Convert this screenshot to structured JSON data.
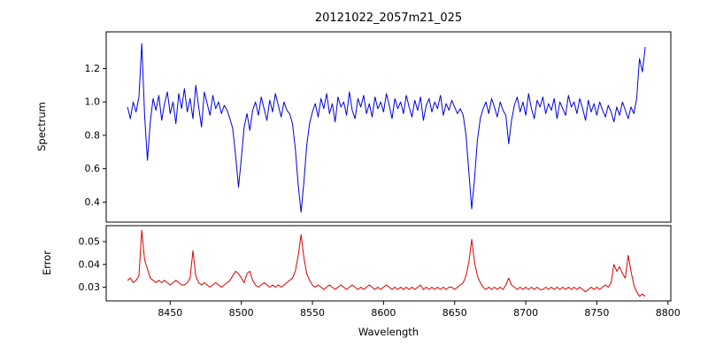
{
  "chart_data": {
    "type": "line",
    "title": "20121022_2057m21_025",
    "xlabel": "Wavelength",
    "grid": false,
    "legend": "none",
    "xlim": [
      8405,
      8802
    ],
    "xticks": [
      8450,
      8500,
      8550,
      8600,
      8650,
      8700,
      8750,
      8800
    ],
    "xtick_labels": [
      "8450",
      "8500",
      "8550",
      "8600",
      "8650",
      "8700",
      "8750",
      "8800"
    ],
    "x": [
      8420,
      8422,
      8424,
      8426,
      8428,
      8430,
      8432,
      8434,
      8436,
      8438,
      8440,
      8442,
      8444,
      8446,
      8448,
      8450,
      8452,
      8454,
      8456,
      8458,
      8460,
      8462,
      8464,
      8466,
      8468,
      8470,
      8472,
      8474,
      8476,
      8478,
      8480,
      8482,
      8484,
      8486,
      8488,
      8490,
      8492,
      8494,
      8496,
      8498,
      8500,
      8502,
      8504,
      8506,
      8508,
      8510,
      8512,
      8514,
      8516,
      8518,
      8520,
      8522,
      8524,
      8526,
      8528,
      8530,
      8532,
      8534,
      8536,
      8538,
      8540,
      8542,
      8544,
      8546,
      8548,
      8550,
      8552,
      8554,
      8556,
      8558,
      8560,
      8562,
      8564,
      8566,
      8568,
      8570,
      8572,
      8574,
      8576,
      8578,
      8580,
      8582,
      8584,
      8586,
      8588,
      8590,
      8592,
      8594,
      8596,
      8598,
      8600,
      8602,
      8604,
      8606,
      8608,
      8610,
      8612,
      8614,
      8616,
      8618,
      8620,
      8622,
      8624,
      8626,
      8628,
      8630,
      8632,
      8634,
      8636,
      8638,
      8640,
      8642,
      8644,
      8646,
      8648,
      8650,
      8652,
      8654,
      8656,
      8658,
      8660,
      8662,
      8664,
      8666,
      8668,
      8670,
      8672,
      8674,
      8676,
      8678,
      8680,
      8682,
      8684,
      8686,
      8688,
      8690,
      8692,
      8694,
      8696,
      8698,
      8700,
      8702,
      8704,
      8706,
      8708,
      8710,
      8712,
      8714,
      8716,
      8718,
      8720,
      8722,
      8724,
      8726,
      8728,
      8730,
      8732,
      8734,
      8736,
      8738,
      8740,
      8742,
      8744,
      8746,
      8748,
      8750,
      8752,
      8754,
      8756,
      8758,
      8760,
      8762,
      8764,
      8766,
      8768,
      8770,
      8772,
      8774,
      8776,
      8778,
      8780,
      8782,
      8784
    ],
    "panels": [
      {
        "name": "spectrum",
        "ylabel": "Spectrum",
        "color": "#0000dd",
        "ylim": [
          0.28,
          1.42
        ],
        "yticks": [
          0.4,
          0.6,
          0.8,
          1.0,
          1.2
        ],
        "ytick_labels": [
          "0.4",
          "0.6",
          "0.8",
          "1.0",
          "1.2"
        ],
        "y": [
          0.97,
          0.9,
          1.0,
          0.94,
          1.03,
          1.35,
          0.92,
          0.65,
          0.88,
          1.02,
          0.95,
          1.04,
          0.89,
          0.99,
          1.06,
          0.93,
          1.0,
          0.87,
          1.05,
          0.96,
          1.08,
          0.94,
          1.02,
          0.9,
          1.1,
          0.97,
          0.85,
          1.06,
          0.99,
          0.92,
          1.04,
          0.96,
          1.0,
          0.93,
          0.98,
          0.95,
          0.9,
          0.84,
          0.68,
          0.49,
          0.66,
          0.85,
          0.93,
          0.83,
          0.95,
          1.0,
          0.92,
          1.03,
          0.96,
          0.89,
          1.01,
          0.94,
          1.05,
          0.98,
          0.91,
          1.0,
          0.95,
          0.93,
          0.87,
          0.72,
          0.5,
          0.34,
          0.52,
          0.74,
          0.87,
          0.94,
          0.99,
          0.91,
          1.02,
          0.96,
          1.05,
          0.93,
          0.99,
          0.88,
          1.03,
          0.97,
          1.0,
          0.92,
          1.06,
          0.95,
          0.9,
          1.02,
          0.97,
          1.04,
          0.93,
          0.99,
          0.91,
          1.03,
          0.96,
          1.0,
          0.94,
          1.05,
          0.98,
          0.9,
          1.02,
          0.96,
          1.0,
          0.93,
          1.04,
          0.97,
          0.91,
          1.01,
          0.95,
          1.03,
          0.89,
          0.98,
          1.02,
          0.94,
          1.0,
          0.96,
          1.04,
          0.92,
          0.99,
          0.95,
          1.01,
          0.97,
          0.93,
          0.96,
          0.92,
          0.8,
          0.58,
          0.36,
          0.54,
          0.77,
          0.9,
          0.96,
          1.0,
          0.93,
          1.02,
          0.97,
          0.91,
          1.0,
          0.95,
          0.92,
          0.75,
          0.89,
          0.98,
          1.03,
          0.94,
          1.0,
          0.92,
          1.05,
          0.96,
          0.9,
          1.01,
          0.97,
          1.03,
          0.93,
          0.99,
          0.95,
          1.02,
          0.9,
          1.0,
          0.96,
          0.92,
          1.04,
          0.97,
          1.0,
          0.93,
          1.02,
          0.96,
          0.89,
          1.01,
          0.94,
          0.99,
          0.92,
          1.0,
          0.95,
          0.91,
          0.98,
          0.94,
          0.88,
          0.97,
          0.92,
          1.0,
          0.95,
          0.9,
          0.97,
          0.93,
          1.02,
          1.26,
          1.18,
          1.33
        ]
      },
      {
        "name": "error",
        "ylabel": "Error",
        "color": "#dd0000",
        "ylim": [
          0.024,
          0.057
        ],
        "yticks": [
          0.03,
          0.04,
          0.05
        ],
        "ytick_labels": [
          "0.03",
          "0.04",
          "0.05"
        ],
        "y": [
          0.033,
          0.034,
          0.032,
          0.033,
          0.035,
          0.055,
          0.042,
          0.038,
          0.034,
          0.033,
          0.032,
          0.033,
          0.032,
          0.033,
          0.032,
          0.031,
          0.032,
          0.033,
          0.032,
          0.031,
          0.031,
          0.032,
          0.034,
          0.046,
          0.035,
          0.032,
          0.031,
          0.032,
          0.031,
          0.03,
          0.031,
          0.032,
          0.031,
          0.03,
          0.031,
          0.032,
          0.033,
          0.035,
          0.037,
          0.036,
          0.034,
          0.032,
          0.036,
          0.037,
          0.033,
          0.031,
          0.03,
          0.031,
          0.032,
          0.031,
          0.03,
          0.031,
          0.03,
          0.031,
          0.03,
          0.031,
          0.032,
          0.033,
          0.034,
          0.037,
          0.044,
          0.053,
          0.043,
          0.036,
          0.033,
          0.031,
          0.03,
          0.031,
          0.03,
          0.029,
          0.03,
          0.031,
          0.03,
          0.029,
          0.03,
          0.031,
          0.03,
          0.029,
          0.03,
          0.031,
          0.03,
          0.029,
          0.03,
          0.029,
          0.03,
          0.031,
          0.03,
          0.029,
          0.03,
          0.029,
          0.03,
          0.031,
          0.03,
          0.029,
          0.03,
          0.029,
          0.03,
          0.029,
          0.03,
          0.029,
          0.03,
          0.029,
          0.03,
          0.031,
          0.029,
          0.03,
          0.029,
          0.03,
          0.029,
          0.03,
          0.029,
          0.03,
          0.029,
          0.03,
          0.03,
          0.029,
          0.03,
          0.031,
          0.032,
          0.035,
          0.041,
          0.051,
          0.041,
          0.035,
          0.032,
          0.03,
          0.029,
          0.03,
          0.029,
          0.03,
          0.029,
          0.03,
          0.029,
          0.031,
          0.034,
          0.031,
          0.03,
          0.029,
          0.03,
          0.029,
          0.03,
          0.029,
          0.03,
          0.029,
          0.03,
          0.029,
          0.029,
          0.03,
          0.029,
          0.03,
          0.029,
          0.03,
          0.029,
          0.03,
          0.029,
          0.03,
          0.029,
          0.03,
          0.029,
          0.03,
          0.029,
          0.028,
          0.029,
          0.03,
          0.029,
          0.03,
          0.029,
          0.03,
          0.031,
          0.03,
          0.032,
          0.04,
          0.037,
          0.039,
          0.036,
          0.034,
          0.044,
          0.037,
          0.031,
          0.028,
          0.026,
          0.027,
          0.026
        ]
      }
    ]
  }
}
